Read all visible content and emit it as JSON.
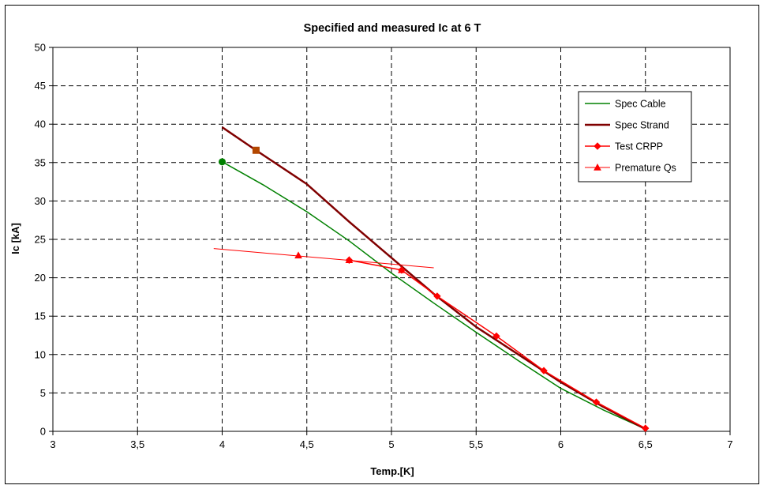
{
  "chart_data": {
    "type": "line",
    "title": "Specified and measured Ic at 6 T",
    "xlabel": "Temp.[K]",
    "ylabel": "Ic [kA]",
    "xlim": [
      3,
      7
    ],
    "ylim": [
      0,
      50
    ],
    "x_ticks": [
      "3",
      "3,5",
      "4",
      "4,5",
      "5",
      "5,5",
      "6",
      "6,5",
      "7"
    ],
    "y_ticks": [
      "0",
      "5",
      "10",
      "15",
      "20",
      "25",
      "30",
      "35",
      "40",
      "45",
      "50"
    ],
    "grid": true,
    "legend_position": "right",
    "series": [
      {
        "name": "Spec Cable",
        "color": "#008000",
        "marker": "none",
        "x": [
          4.0,
          4.25,
          4.5,
          4.75,
          5.0,
          5.25,
          5.5,
          5.75,
          6.0,
          6.25,
          6.5
        ],
        "y": [
          35.1,
          32.0,
          28.6,
          24.8,
          20.6,
          16.7,
          12.9,
          9.2,
          5.6,
          2.8,
          0.3
        ],
        "highlight_point": {
          "x": 4.0,
          "y": 35.1,
          "marker": "circle"
        }
      },
      {
        "name": "Spec Strand",
        "color": "#800000",
        "marker": "none",
        "x": [
          4.0,
          4.2,
          4.5,
          4.75,
          5.0,
          5.25,
          5.5,
          5.75,
          6.0,
          6.25,
          6.5
        ],
        "y": [
          39.6,
          36.6,
          32.2,
          27.3,
          22.6,
          17.9,
          13.6,
          10.0,
          6.4,
          3.2,
          0.3
        ],
        "highlight_point": {
          "x": 4.2,
          "y": 36.6,
          "marker": "square"
        }
      },
      {
        "name": "Test CRPP",
        "color": "#ff0000",
        "marker": "diamond",
        "x": [
          4.75,
          5.06,
          5.27,
          5.62,
          5.9,
          6.21,
          6.5
        ],
        "y": [
          22.3,
          21.0,
          17.6,
          12.4,
          7.9,
          3.8,
          0.4
        ]
      },
      {
        "name": "Premature Qs",
        "color": "#ff0000",
        "marker": "triangle",
        "x": [
          4.45,
          4.75,
          5.06
        ],
        "y": [
          22.9,
          22.3,
          21.0
        ],
        "trendline": {
          "x": [
            3.95,
            5.25
          ],
          "y": [
            23.8,
            21.3
          ]
        }
      }
    ]
  }
}
